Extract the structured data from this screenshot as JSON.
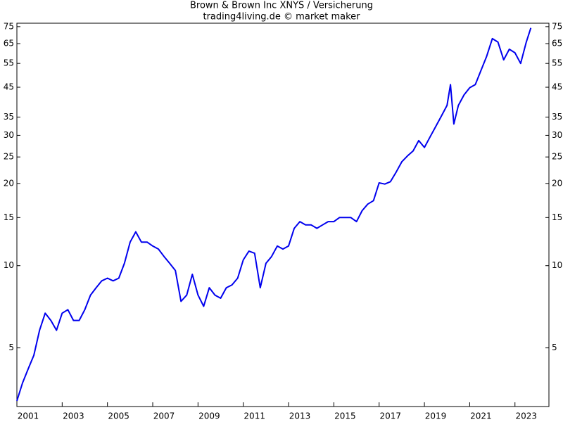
{
  "chart_data": {
    "type": "line",
    "title": "Brown & Brown Inc XNYS / Versicherung",
    "subtitle": "trading4living.de © market maker",
    "log_scale": true,
    "x": [
      2001.0,
      2001.25,
      2001.5,
      2001.75,
      2002.0,
      2002.25,
      2002.5,
      2002.75,
      2003.0,
      2003.25,
      2003.5,
      2003.75,
      2004.0,
      2004.25,
      2004.5,
      2004.75,
      2005.0,
      2005.25,
      2005.5,
      2005.75,
      2006.0,
      2006.25,
      2006.5,
      2006.75,
      2007.0,
      2007.25,
      2007.5,
      2007.75,
      2008.0,
      2008.25,
      2008.5,
      2008.75,
      2009.0,
      2009.25,
      2009.5,
      2009.75,
      2010.0,
      2010.25,
      2010.5,
      2010.75,
      2011.0,
      2011.25,
      2011.5,
      2011.75,
      2012.0,
      2012.25,
      2012.5,
      2012.75,
      2013.0,
      2013.25,
      2013.5,
      2013.75,
      2014.0,
      2014.25,
      2014.5,
      2014.75,
      2015.0,
      2015.25,
      2015.5,
      2015.75,
      2016.0,
      2016.25,
      2016.5,
      2016.75,
      2017.0,
      2017.25,
      2017.5,
      2017.75,
      2018.0,
      2018.25,
      2018.5,
      2018.75,
      2019.0,
      2019.25,
      2019.5,
      2019.75,
      2020.0,
      2020.15,
      2020.3,
      2020.5,
      2020.75,
      2021.0,
      2021.25,
      2021.5,
      2021.75,
      2022.0,
      2022.25,
      2022.5,
      2022.75,
      2023.0,
      2023.25,
      2023.5,
      2023.7
    ],
    "series": [
      {
        "color": "#0000ee",
        "values": [
          3.2,
          3.72,
          4.19,
          4.7,
          5.8,
          6.7,
          6.3,
          5.8,
          6.7,
          6.9,
          6.3,
          6.3,
          6.9,
          7.8,
          8.3,
          8.8,
          9.0,
          8.8,
          9.0,
          10.2,
          12.2,
          13.3,
          12.2,
          12.2,
          11.8,
          11.5,
          10.8,
          10.2,
          9.6,
          7.4,
          7.8,
          9.3,
          7.8,
          7.1,
          8.3,
          7.8,
          7.6,
          8.3,
          8.5,
          9.0,
          10.5,
          11.3,
          11.1,
          8.3,
          10.2,
          10.8,
          11.8,
          11.5,
          11.8,
          13.7,
          14.5,
          14.1,
          14.1,
          13.7,
          14.1,
          14.5,
          14.5,
          15.0,
          15.0,
          15.0,
          14.5,
          15.9,
          16.8,
          17.3,
          20.1,
          19.9,
          20.3,
          22.0,
          24.0,
          25.2,
          26.3,
          28.7,
          27.1,
          29.6,
          32.3,
          35.3,
          38.6,
          46.0,
          33.0,
          38.6,
          42.2,
          44.8,
          46.0,
          51.9,
          58.4,
          67.8,
          65.8,
          56.7,
          62.0,
          60.2,
          55.0,
          65.8,
          74.2
        ]
      }
    ],
    "xlim": [
      2001.0,
      2024.5
    ],
    "xticks": [
      2001,
      2003,
      2005,
      2007,
      2009,
      2011,
      2013,
      2015,
      2017,
      2019,
      2021,
      2023
    ],
    "ylim": [
      3.05,
      77.2
    ],
    "yticks": [
      75,
      65,
      55,
      45,
      35,
      30,
      25,
      20,
      15,
      10,
      5
    ]
  }
}
